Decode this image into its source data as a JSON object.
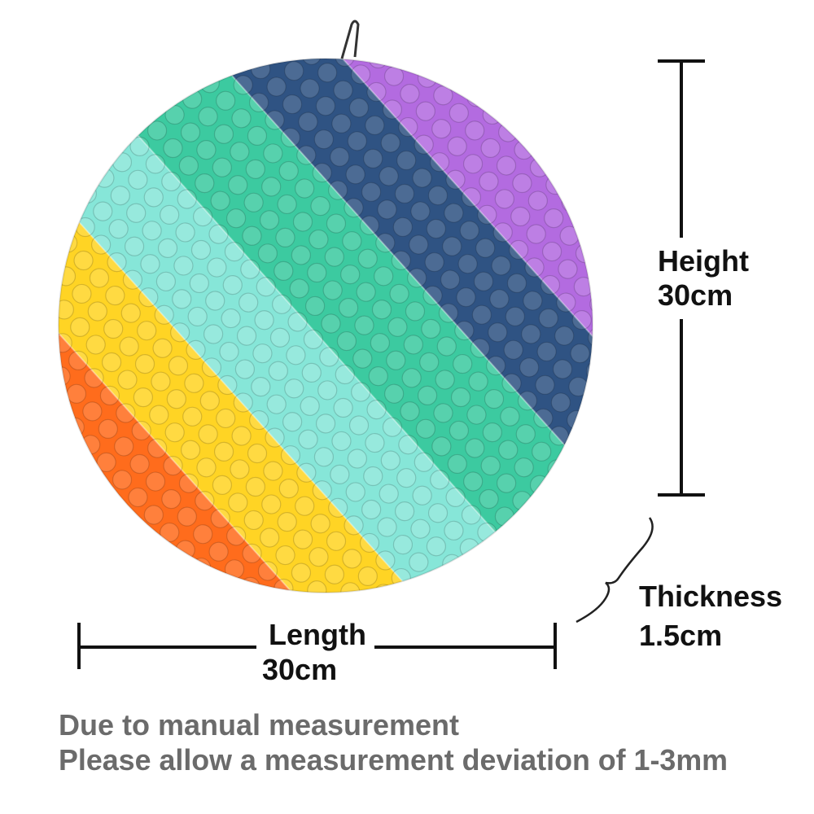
{
  "height": {
    "label": "Height",
    "value": "30cm"
  },
  "thickness": {
    "label": "Thickness",
    "value": "1.5cm"
  },
  "length": {
    "label": "Length",
    "value": "30cm"
  },
  "note": {
    "line1": "Due to manual measurement",
    "line2": "Please allow a measurement deviation of 1-3mm"
  }
}
